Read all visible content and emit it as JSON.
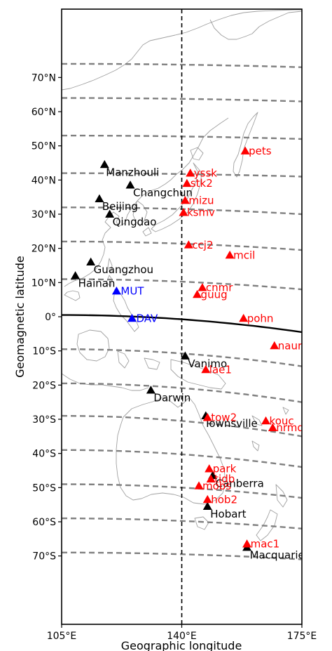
{
  "axes": {
    "xlabel": "Geographic longitude",
    "ylabel": "Geomagnetic latitude",
    "xlim": [
      105,
      175
    ],
    "ylim": [
      -90,
      90
    ],
    "x_ticks": [
      {
        "value": 105,
        "label": "105°E"
      },
      {
        "value": 140,
        "label": "140°E"
      },
      {
        "value": 175,
        "label": "175°E"
      }
    ],
    "y_ticks": [
      {
        "value": 70,
        "label": "70°N"
      },
      {
        "value": 60,
        "label": "60°N"
      },
      {
        "value": 50,
        "label": "50°N"
      },
      {
        "value": 40,
        "label": "40°N"
      },
      {
        "value": 30,
        "label": "30°N"
      },
      {
        "value": 20,
        "label": "20°N"
      },
      {
        "value": 10,
        "label": "10°N"
      },
      {
        "value": 0,
        "label": "0°"
      },
      {
        "value": -10,
        "label": "10°S"
      },
      {
        "value": -20,
        "label": "20°S"
      },
      {
        "value": -30,
        "label": "30°S"
      },
      {
        "value": -40,
        "label": "40°S"
      },
      {
        "value": -50,
        "label": "50°S"
      },
      {
        "value": -60,
        "label": "60°S"
      },
      {
        "value": -70,
        "label": "70°S"
      }
    ],
    "reference_meridian": 140
  },
  "colors": {
    "black_group": "#000000",
    "red_group": "#ff0000",
    "blue_group": "#0000ff",
    "contour": "#808080",
    "coastline": "#a0a0a0"
  },
  "contours": [
    {
      "lat": 75,
      "start": 74.0,
      "end": 73.0
    },
    {
      "lat": 65,
      "start": 64.0,
      "end": 63.0
    },
    {
      "lat": 55,
      "start": 53.0,
      "end": 52.0
    },
    {
      "lat": 45,
      "start": 42.0,
      "end": 41.0
    },
    {
      "lat": 35,
      "start": 32.0,
      "end": 30.0
    },
    {
      "lat": 25,
      "start": 22.0,
      "end": 19.5
    },
    {
      "lat": 15,
      "start": 11.0,
      "end": 8.0
    },
    {
      "lat": -5,
      "start": -9.5,
      "end": -14.5
    },
    {
      "lat": -15,
      "start": -19.5,
      "end": -25.0
    },
    {
      "lat": -25,
      "start": -29.0,
      "end": -35.0
    },
    {
      "lat": -35,
      "start": -39.0,
      "end": -44.0
    },
    {
      "lat": -45,
      "start": -49.0,
      "end": -53.0
    },
    {
      "lat": -55,
      "start": -59.0,
      "end": -62.0
    },
    {
      "lat": -65,
      "start": -69.0,
      "end": -71.0
    }
  ],
  "equator": {
    "start": 0.5,
    "end": -4.5
  },
  "stations": [
    {
      "name": "Manzhouli",
      "lon": 117.5,
      "lat": 44.5,
      "group": "black",
      "dx": 2,
      "dy": 16
    },
    {
      "name": "Changchun",
      "lon": 125.0,
      "lat": 38.5,
      "group": "black",
      "dx": 4,
      "dy": 16
    },
    {
      "name": "Beijing",
      "lon": 116.0,
      "lat": 34.5,
      "group": "black",
      "dx": 4,
      "dy": 16
    },
    {
      "name": "Qingdao",
      "lon": 119.0,
      "lat": 30.0,
      "group": "black",
      "dx": 4,
      "dy": 16
    },
    {
      "name": "Guangzhou",
      "lon": 113.5,
      "lat": 16.0,
      "group": "black",
      "dx": 4,
      "dy": 16
    },
    {
      "name": "Hainan",
      "lon": 109.0,
      "lat": 12.0,
      "group": "black",
      "dx": 4,
      "dy": 16
    },
    {
      "name": "MUT",
      "lon": 121.0,
      "lat": 7.5,
      "group": "blue",
      "dx": 6,
      "dy": 5
    },
    {
      "name": "DAV",
      "lon": 125.5,
      "lat": -0.5,
      "group": "blue",
      "dx": 6,
      "dy": 5
    },
    {
      "name": "Vanimo",
      "lon": 141.0,
      "lat": -11.5,
      "group": "black",
      "dx": 4,
      "dy": 16
    },
    {
      "name": "Darwin",
      "lon": 131.0,
      "lat": -21.5,
      "group": "black",
      "dx": 4,
      "dy": 16
    },
    {
      "name": "Townsville",
      "lon": 147.0,
      "lat": -29.0,
      "group": "black",
      "dx": -2,
      "dy": 16
    },
    {
      "name": "Canberra",
      "lon": 149.0,
      "lat": -46.5,
      "group": "black",
      "dx": 4,
      "dy": 16
    },
    {
      "name": "Hobart",
      "lon": 147.5,
      "lat": -55.5,
      "group": "black",
      "dx": 4,
      "dy": 16
    },
    {
      "name": "Macquarie",
      "lon": 159.0,
      "lat": -67.5,
      "group": "black",
      "dx": 4,
      "dy": 16
    },
    {
      "name": "pets",
      "lon": 158.5,
      "lat": 48.5,
      "group": "red",
      "dx": 5,
      "dy": 5
    },
    {
      "name": "yssk",
      "lon": 142.5,
      "lat": 42.0,
      "group": "red",
      "dx": 5,
      "dy": 5
    },
    {
      "name": "stk2",
      "lon": 141.5,
      "lat": 39.0,
      "group": "red",
      "dx": 5,
      "dy": 5
    },
    {
      "name": "mizu",
      "lon": 141.0,
      "lat": 34.0,
      "group": "red",
      "dx": 5,
      "dy": 5
    },
    {
      "name": "ksmv",
      "lon": 140.5,
      "lat": 30.5,
      "group": "red",
      "dx": 5,
      "dy": 5
    },
    {
      "name": "ccj2",
      "lon": 142.0,
      "lat": 21.0,
      "group": "red",
      "dx": 5,
      "dy": 5
    },
    {
      "name": "mcil",
      "lon": 154.0,
      "lat": 18.0,
      "group": "red",
      "dx": 5,
      "dy": 5
    },
    {
      "name": "cnmr",
      "lon": 146.0,
      "lat": 8.5,
      "group": "red",
      "dx": 5,
      "dy": 5
    },
    {
      "name": "guug",
      "lon": 144.5,
      "lat": 6.5,
      "group": "red",
      "dx": 5,
      "dy": 5
    },
    {
      "name": "pohn",
      "lon": 158.0,
      "lat": -0.5,
      "group": "red",
      "dx": 5,
      "dy": 5
    },
    {
      "name": "naur",
      "lon": 167.0,
      "lat": -8.5,
      "group": "red",
      "dx": 5,
      "dy": 5
    },
    {
      "name": "lae1",
      "lon": 147.0,
      "lat": -15.5,
      "group": "red",
      "dx": 5,
      "dy": 5
    },
    {
      "name": "tow2",
      "lon": 147.5,
      "lat": -29.5,
      "group": "red",
      "dx": 5,
      "dy": 5
    },
    {
      "name": "kouc",
      "lon": 164.5,
      "lat": -30.5,
      "group": "red",
      "dx": 5,
      "dy": 5
    },
    {
      "name": "nrmd",
      "lon": 166.5,
      "lat": -32.5,
      "group": "red",
      "dx": 5,
      "dy": 5
    },
    {
      "name": "park",
      "lon": 148.0,
      "lat": -44.5,
      "group": "red",
      "dx": 5,
      "dy": 5
    },
    {
      "name": "tidb",
      "lon": 148.5,
      "lat": -47.5,
      "group": "red",
      "dx": 5,
      "dy": 5
    },
    {
      "name": "mobs",
      "lon": 145.0,
      "lat": -49.5,
      "group": "red",
      "dx": 5,
      "dy": 5
    },
    {
      "name": "hob2",
      "lon": 147.5,
      "lat": -53.5,
      "group": "red",
      "dx": 5,
      "dy": 5
    },
    {
      "name": "mac1",
      "lon": 159.0,
      "lat": -66.5,
      "group": "red",
      "dx": 5,
      "dy": 5
    }
  ]
}
